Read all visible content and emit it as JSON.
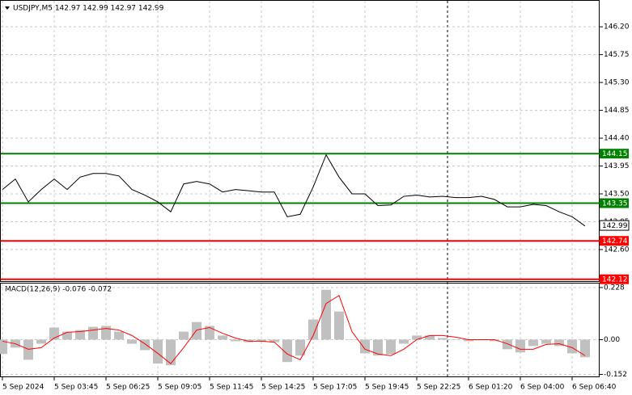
{
  "chart_data": [
    {
      "type": "line",
      "title": "USDJPY,M5  142.97 142.99 142.97 142.99",
      "color": "#000000",
      "categories": [
        "5 Sep 2024",
        null,
        null,
        null,
        "5 Sep 03:45",
        null,
        null,
        null,
        "5 Sep 06:25",
        null,
        null,
        null,
        "5 Sep 09:05",
        null,
        null,
        null,
        "5 Sep 11:45",
        null,
        null,
        null,
        "5 Sep 14:25",
        null,
        null,
        null,
        "5 Sep 17:05",
        null,
        null,
        null,
        "5 Sep 19:45",
        null,
        null,
        null,
        "5 Sep 22:25",
        null,
        null,
        null,
        "6 Sep 01:20",
        null,
        null,
        null,
        "6 Sep 04:00",
        null,
        null,
        null,
        "6 Sep 06:40",
        null
      ],
      "values": [
        143.57,
        143.74,
        143.37,
        143.57,
        143.74,
        143.57,
        143.77,
        143.83,
        143.83,
        143.79,
        143.57,
        143.48,
        143.37,
        143.21,
        143.66,
        143.7,
        143.66,
        143.53,
        143.57,
        143.55,
        143.53,
        143.53,
        143.13,
        143.17,
        143.61,
        144.13,
        143.77,
        143.5,
        143.5,
        143.31,
        143.32,
        143.46,
        143.48,
        143.45,
        143.46,
        143.44,
        143.44,
        143.46,
        143.41,
        143.29,
        143.29,
        143.33,
        143.31,
        143.21,
        143.13,
        142.98
      ],
      "ylim": [
        142.09,
        146.62
      ],
      "yticks": [
        {
          "value": 146.2,
          "label": "146.20"
        },
        145.75,
        {
          "value": 145.3,
          "label": "145.30"
        },
        144.85,
        {
          "value": 144.4,
          "label": "144.40"
        },
        143.95,
        {
          "value": 143.5,
          "label": "143.50"
        },
        143.05,
        {
          "value": 142.6,
          "label": "142.60"
        }
      ],
      "grid": true,
      "levels": [
        {
          "value": 144.15,
          "color": "#008000"
        },
        {
          "value": 143.35,
          "color": "#008000"
        },
        {
          "value": 142.74,
          "color": "#ff0000"
        },
        {
          "value": 142.12,
          "color": "#ff0000"
        }
      ],
      "current_price": 142.99
    },
    {
      "type": "macd",
      "title": "MACD(12,26,9) -0.076 -0.072",
      "histogram": {
        "color": "#c0c0c0",
        "values": [
          -0.063,
          -0.035,
          -0.088,
          -0.018,
          0.053,
          0.035,
          0.042,
          0.056,
          0.06,
          0.035,
          -0.018,
          -0.046,
          -0.105,
          -0.112,
          0.035,
          0.077,
          0.06,
          0.018,
          -0.007,
          -0.011,
          -0.007,
          -0.011,
          -0.098,
          -0.07,
          0.088,
          0.218,
          0.123,
          0,
          -0.06,
          -0.07,
          -0.063,
          -0.018,
          0.018,
          0.018,
          0.007,
          0,
          -0.007,
          0,
          -0.007,
          -0.042,
          -0.056,
          -0.028,
          -0.018,
          -0.028,
          -0.06,
          -0.077
        ]
      },
      "signal": {
        "color": "#ff0000",
        "values": [
          -0.007,
          -0.018,
          -0.042,
          -0.035,
          0.007,
          0.032,
          0.035,
          0.042,
          0.049,
          0.042,
          0.018,
          -0.018,
          -0.06,
          -0.105,
          -0.035,
          0.042,
          0.053,
          0.028,
          0.007,
          -0.007,
          -0.007,
          -0.011,
          -0.063,
          -0.088,
          0.018,
          0.158,
          0.193,
          0.035,
          -0.042,
          -0.063,
          -0.07,
          -0.042,
          0,
          0.018,
          0.018,
          0.011,
          0,
          0,
          0,
          -0.018,
          -0.042,
          -0.042,
          -0.021,
          -0.018,
          -0.035,
          -0.07
        ]
      },
      "ylim": [
        -0.161,
        0.2455
      ],
      "yticks": [
        0.228,
        {
          "value": 0,
          "label": "0.00"
        },
        -0.152
      ]
    }
  ]
}
